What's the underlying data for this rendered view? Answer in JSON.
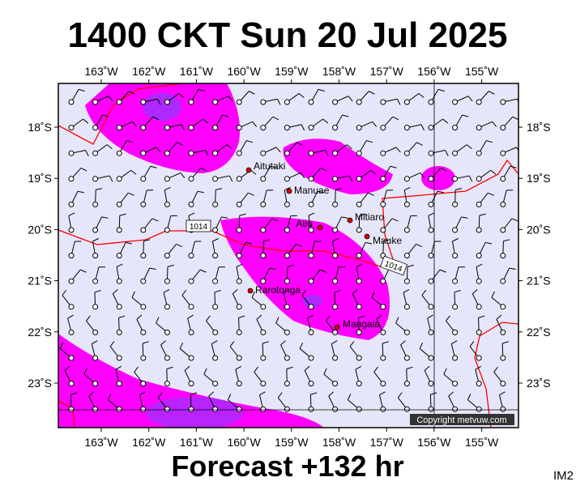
{
  "header": {
    "title": "1400 CKT Sun 20 Jul 2025"
  },
  "footer": {
    "forecast": "Forecast +132 hr",
    "code": "IM2"
  },
  "map": {
    "copyright": "Copyright metvuw.com",
    "lon_labels": [
      "163˚W",
      "162˚W",
      "161˚W",
      "160˚W",
      "159˚W",
      "158˚W",
      "157˚W",
      "156˚W",
      "155˚W"
    ],
    "lat_labels": [
      "18˚S",
      "19˚S",
      "20˚S",
      "21˚S",
      "22˚S",
      "23˚S"
    ],
    "places": [
      "Aitutaki",
      "Manuae",
      "Atiu",
      "Mitiaro",
      "Mauke",
      "Rarotonga",
      "Mangaia"
    ],
    "isobar_labels": [
      "1014",
      "1014"
    ]
  }
}
